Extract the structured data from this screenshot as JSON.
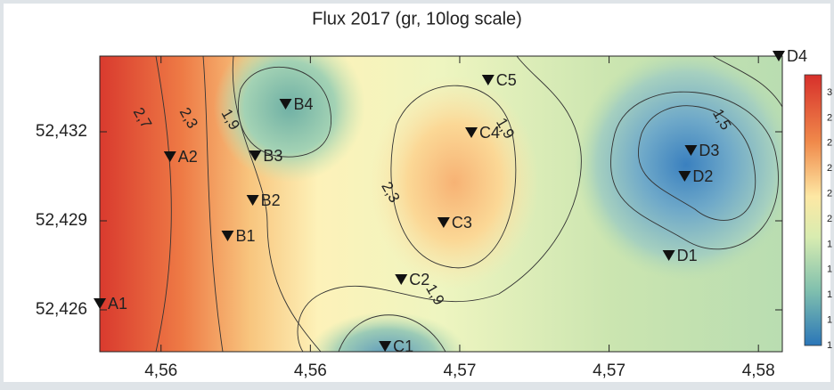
{
  "chart_data": {
    "type": "contour",
    "title": "Flux 2017 (gr, 10log scale)",
    "xlim": [
      4.55395,
      4.5768
    ],
    "ylim": [
      52.42459,
      52.43455
    ],
    "xticks": [
      {
        "value": 4.556,
        "label": "4,56"
      },
      {
        "value": 4.561,
        "label": "4,56"
      },
      {
        "value": 4.566,
        "label": "4,57"
      },
      {
        "value": 4.571,
        "label": "4,57"
      },
      {
        "value": 4.576,
        "label": "4,58"
      }
    ],
    "yticks": [
      {
        "value": 52.426,
        "label": "52,426"
      },
      {
        "value": 52.429,
        "label": "52,429"
      },
      {
        "value": 52.432,
        "label": "52,432"
      }
    ],
    "stations": [
      {
        "name": "A1",
        "x": 4.55395,
        "y": 52.42621
      },
      {
        "name": "A2",
        "x": 4.5563,
        "y": 52.43116
      },
      {
        "name": "B1",
        "x": 4.55823,
        "y": 52.42849
      },
      {
        "name": "B2",
        "x": 4.55907,
        "y": 52.42969
      },
      {
        "name": "B3",
        "x": 4.55915,
        "y": 52.43119
      },
      {
        "name": "B4",
        "x": 4.56017,
        "y": 52.43293
      },
      {
        "name": "C1",
        "x": 4.5635,
        "y": 52.42477
      },
      {
        "name": "C2",
        "x": 4.56404,
        "y": 52.42702
      },
      {
        "name": "C3",
        "x": 4.56546,
        "y": 52.42894
      },
      {
        "name": "C4",
        "x": 4.56639,
        "y": 52.43197
      },
      {
        "name": "C5",
        "x": 4.56695,
        "y": 52.43374
      },
      {
        "name": "D1",
        "x": 4.573,
        "y": 52.42783
      },
      {
        "name": "D2",
        "x": 4.57353,
        "y": 52.4305
      },
      {
        "name": "D3",
        "x": 4.57374,
        "y": 52.43137
      },
      {
        "name": "D4",
        "x": 4.57668,
        "y": 52.43455
      }
    ],
    "contour_labels": [
      {
        "value": 2.7,
        "label": "2,7",
        "x": 4.55535,
        "y": 52.43245
      },
      {
        "value": 2.3,
        "label": "2,3",
        "x": 4.5569,
        "y": 52.43245
      },
      {
        "value": 1.9,
        "label": "1,9",
        "x": 4.5583,
        "y": 52.4324
      },
      {
        "value": 2.3,
        "label": "2,3",
        "x": 4.56366,
        "y": 52.42995
      },
      {
        "value": 1.9,
        "label": "1,9",
        "x": 4.5675,
        "y": 52.4321
      },
      {
        "value": 1.5,
        "label": "1,5",
        "x": 4.57475,
        "y": 52.4324
      },
      {
        "value": 1.9,
        "label": "1,9",
        "x": 4.56515,
        "y": 52.4265
      }
    ],
    "colorbar_labels": [
      "3",
      "2",
      "2",
      "2",
      "2",
      "2",
      "1",
      "1",
      "1",
      "1",
      "1"
    ]
  }
}
